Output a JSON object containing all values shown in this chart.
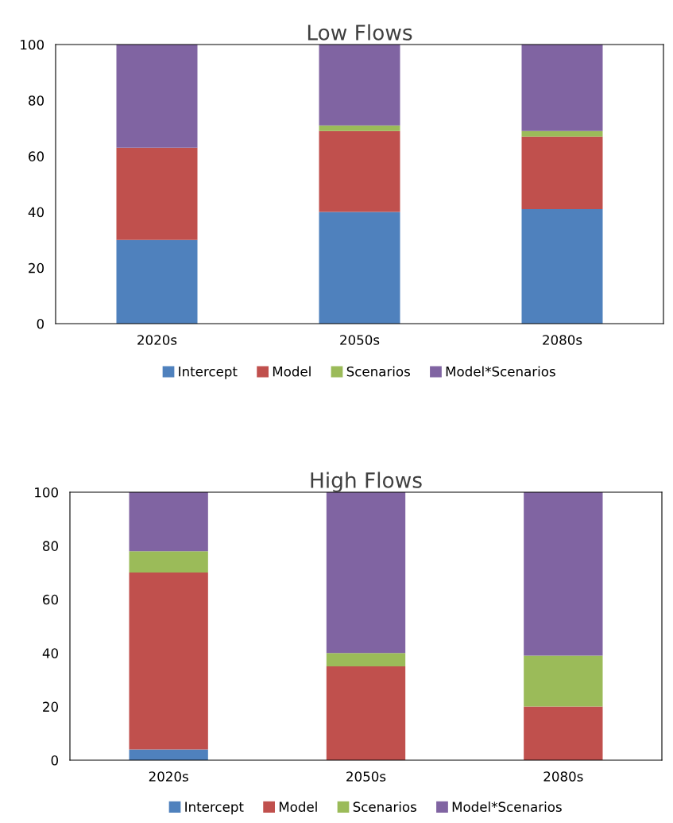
{
  "chart_data": [
    {
      "type": "bar",
      "title": "Low Flows",
      "categories": [
        "2020s",
        "2050s",
        "2080s"
      ],
      "stacked": true,
      "ylim": [
        0,
        100
      ],
      "yticks": [
        0,
        20,
        40,
        60,
        80,
        100
      ],
      "grid": false,
      "legend": "bottom",
      "series": [
        {
          "name": "Intercept",
          "color": "#4f81bd",
          "values": [
            30,
            40,
            41
          ]
        },
        {
          "name": "Model",
          "color": "#c0504d",
          "values": [
            33,
            29,
            26
          ]
        },
        {
          "name": "Scenarios",
          "color": "#9bbb59",
          "values": [
            0,
            2,
            2
          ]
        },
        {
          "name": "Model*Scenarios",
          "color": "#8064a2",
          "values": [
            37,
            29,
            31
          ]
        }
      ]
    },
    {
      "type": "bar",
      "title": "High Flows",
      "categories": [
        "2020s",
        "2050s",
        "2080s"
      ],
      "stacked": true,
      "ylim": [
        0,
        100
      ],
      "yticks": [
        0,
        20,
        40,
        60,
        80,
        100
      ],
      "grid": false,
      "legend": "bottom",
      "series": [
        {
          "name": "Intercept",
          "color": "#4f81bd",
          "values": [
            4,
            0,
            0
          ]
        },
        {
          "name": "Model",
          "color": "#c0504d",
          "values": [
            66,
            35,
            20
          ]
        },
        {
          "name": "Scenarios",
          "color": "#9bbb59",
          "values": [
            8,
            5,
            19
          ]
        },
        {
          "name": "Model*Scenarios",
          "color": "#8064a2",
          "values": [
            22,
            60,
            61
          ]
        }
      ]
    }
  ]
}
